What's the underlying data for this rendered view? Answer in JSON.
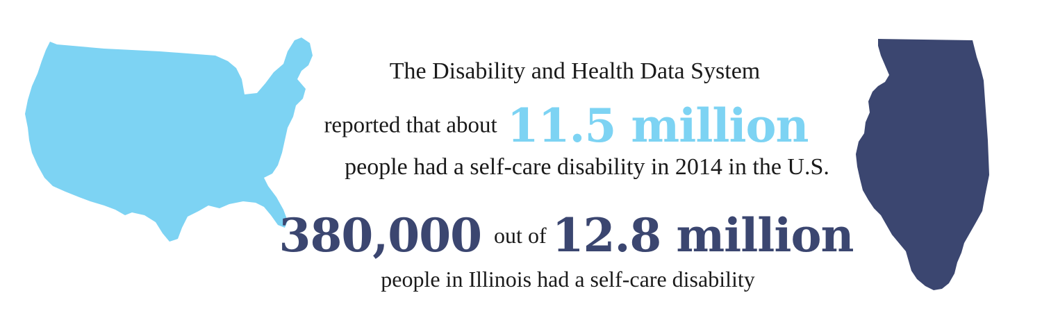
{
  "colors": {
    "accent_light": "#7dd3f3",
    "accent_dark": "#3b4670",
    "text": "#1a1a1a",
    "background": "#ffffff"
  },
  "us_stat": {
    "source_line": "The Disability and Health Data System",
    "lead_in": "reported that about",
    "figure": "11.5 million",
    "description": "people had a self-care disability in 2014 in the U.S."
  },
  "illinois_stat": {
    "figure": "380,000",
    "connector": "out of",
    "total": "12.8 million",
    "description": "people in Illinois had a self-care disability"
  },
  "icons": {
    "us_map": "united-states-map-icon",
    "illinois_map": "illinois-map-icon"
  }
}
